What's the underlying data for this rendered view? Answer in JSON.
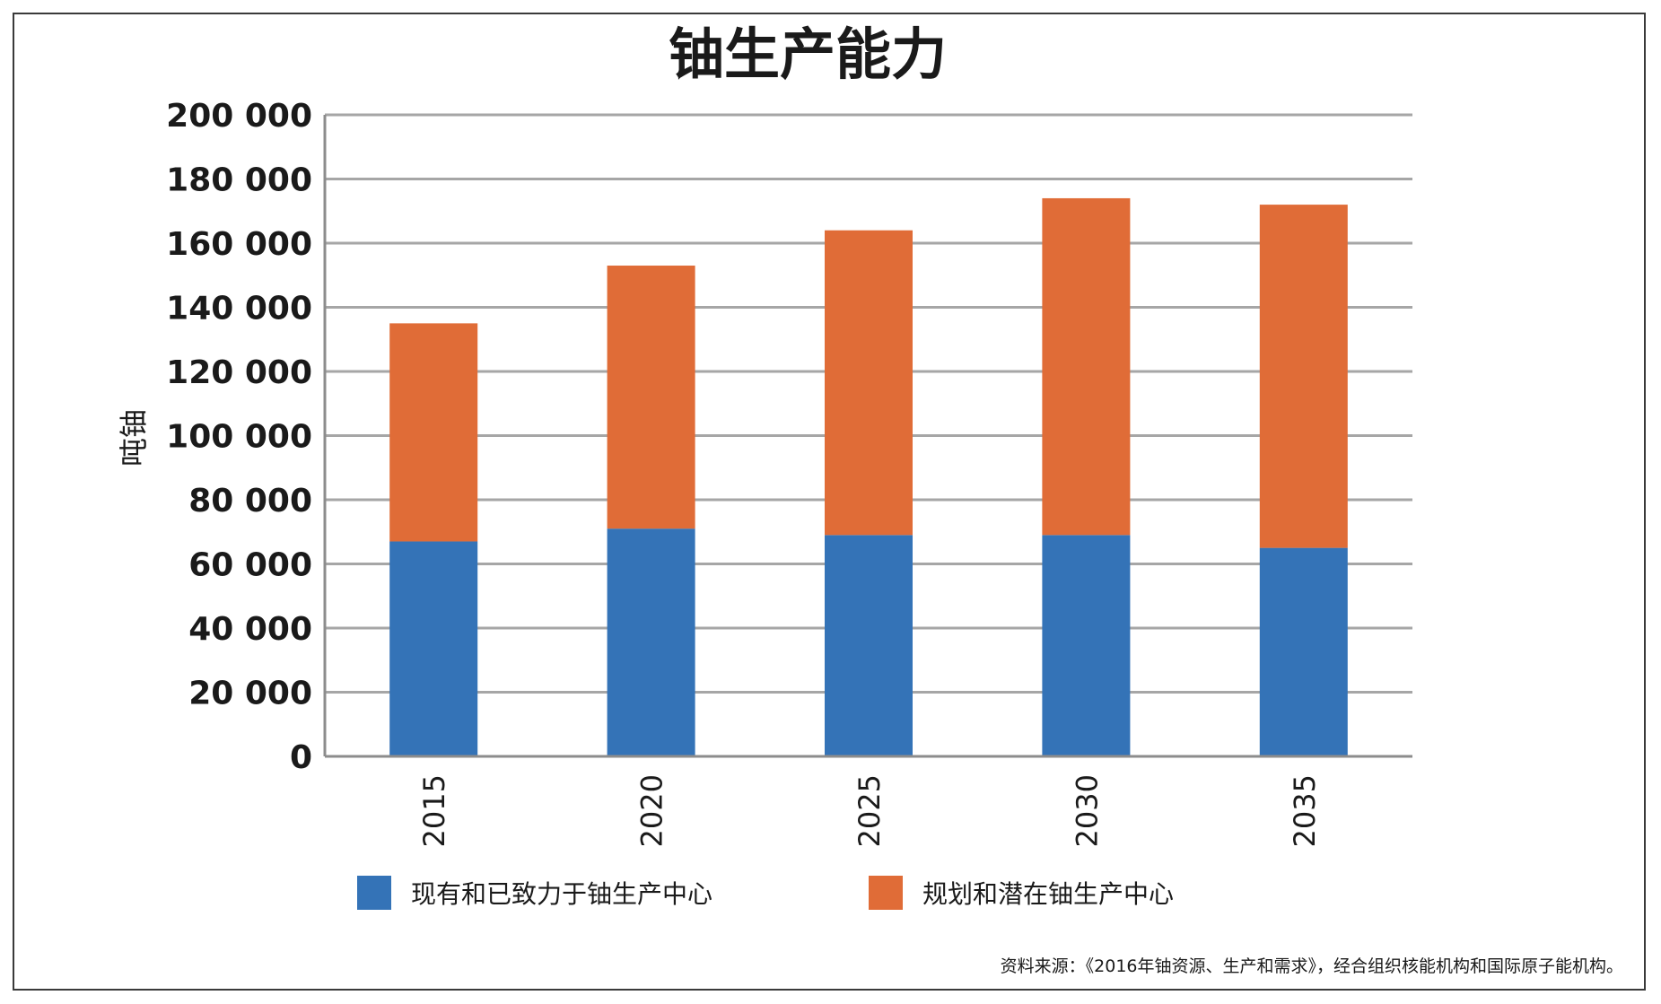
{
  "chart_data": {
    "type": "bar",
    "stacked": true,
    "title": "铀生产能力",
    "xlabel": "",
    "ylabel": "吨铀",
    "ylim": [
      0,
      200000
    ],
    "yticks": [
      0,
      20000,
      40000,
      60000,
      80000,
      100000,
      120000,
      140000,
      160000,
      180000,
      200000
    ],
    "ytick_labels": [
      "0",
      "20 000",
      "40 000",
      "60 000",
      "80 000",
      "100 000",
      "120 000",
      "140 000",
      "160 000",
      "180 000",
      "200 000"
    ],
    "categories": [
      "2015",
      "2020",
      "2025",
      "2030",
      "2035"
    ],
    "series": [
      {
        "name": "现有和已致力于铀生产中心",
        "color": "#3473b7",
        "values": [
          67000,
          71000,
          69000,
          69000,
          65000
        ]
      },
      {
        "name": "规划和潜在铀生产中心",
        "color": "#e06c37",
        "values": [
          68000,
          82000,
          95000,
          105000,
          107000
        ]
      }
    ],
    "grid": true,
    "legend_position": "bottom"
  },
  "source_note": "资料来源：《2016年铀资源、生产和需求》，经合组织核能机构和国际原子能机构。"
}
